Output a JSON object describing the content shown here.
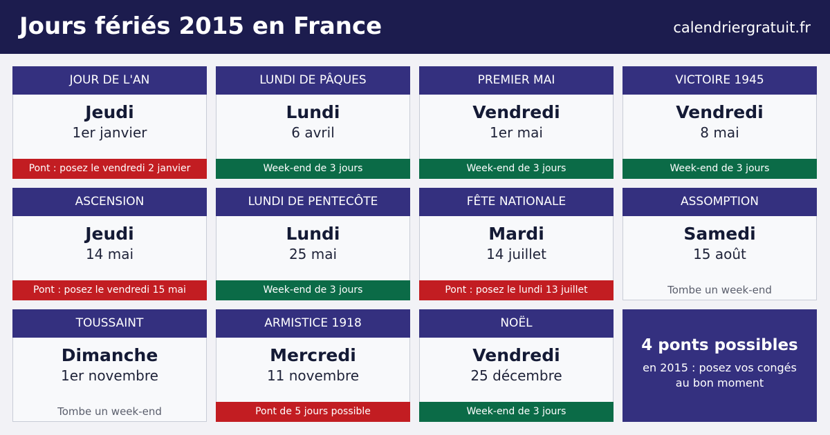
{
  "header": {
    "title": "Jours fériés 2015 en France",
    "site": "calendriergratuit.fr"
  },
  "colors": {
    "header_bg": "#1c1c4e",
    "card_head": "#34307f",
    "green": "#0b6b47",
    "red": "#c21d22"
  },
  "holidays": [
    {
      "name": "JOUR DE L'AN",
      "weekday": "Jeudi",
      "date": "1er janvier",
      "note": "Pont : posez le vendredi 2 janvier",
      "note_type": "red"
    },
    {
      "name": "LUNDI DE PÂQUES",
      "weekday": "Lundi",
      "date": "6 avril",
      "note": "Week-end de 3 jours",
      "note_type": "green"
    },
    {
      "name": "PREMIER MAI",
      "weekday": "Vendredi",
      "date": "1er mai",
      "note": "Week-end de 3 jours",
      "note_type": "green"
    },
    {
      "name": "VICTOIRE 1945",
      "weekday": "Vendredi",
      "date": "8 mai",
      "note": "Week-end de 3 jours",
      "note_type": "green"
    },
    {
      "name": "ASCENSION",
      "weekday": "Jeudi",
      "date": "14 mai",
      "note": "Pont : posez le vendredi 15 mai",
      "note_type": "red"
    },
    {
      "name": "LUNDI DE PENTECÔTE",
      "weekday": "Lundi",
      "date": "25 mai",
      "note": "Week-end de 3 jours",
      "note_type": "green"
    },
    {
      "name": "FÊTE NATIONALE",
      "weekday": "Mardi",
      "date": "14 juillet",
      "note": "Pont : posez le lundi 13 juillet",
      "note_type": "red"
    },
    {
      "name": "ASSOMPTION",
      "weekday": "Samedi",
      "date": "15 août",
      "note": "Tombe un week-end",
      "note_type": "plain"
    },
    {
      "name": "TOUSSAINT",
      "weekday": "Dimanche",
      "date": "1er novembre",
      "note": "Tombe un week-end",
      "note_type": "plain"
    },
    {
      "name": "ARMISTICE 1918",
      "weekday": "Mercredi",
      "date": "11 novembre",
      "note": "Pont de 5 jours possible",
      "note_type": "red"
    },
    {
      "name": "NOËL",
      "weekday": "Vendredi",
      "date": "25 décembre",
      "note": "Week-end de 3 jours",
      "note_type": "green"
    }
  ],
  "summary": {
    "title": "4 ponts possibles",
    "text": "en 2015 : posez vos congés au bon moment"
  }
}
